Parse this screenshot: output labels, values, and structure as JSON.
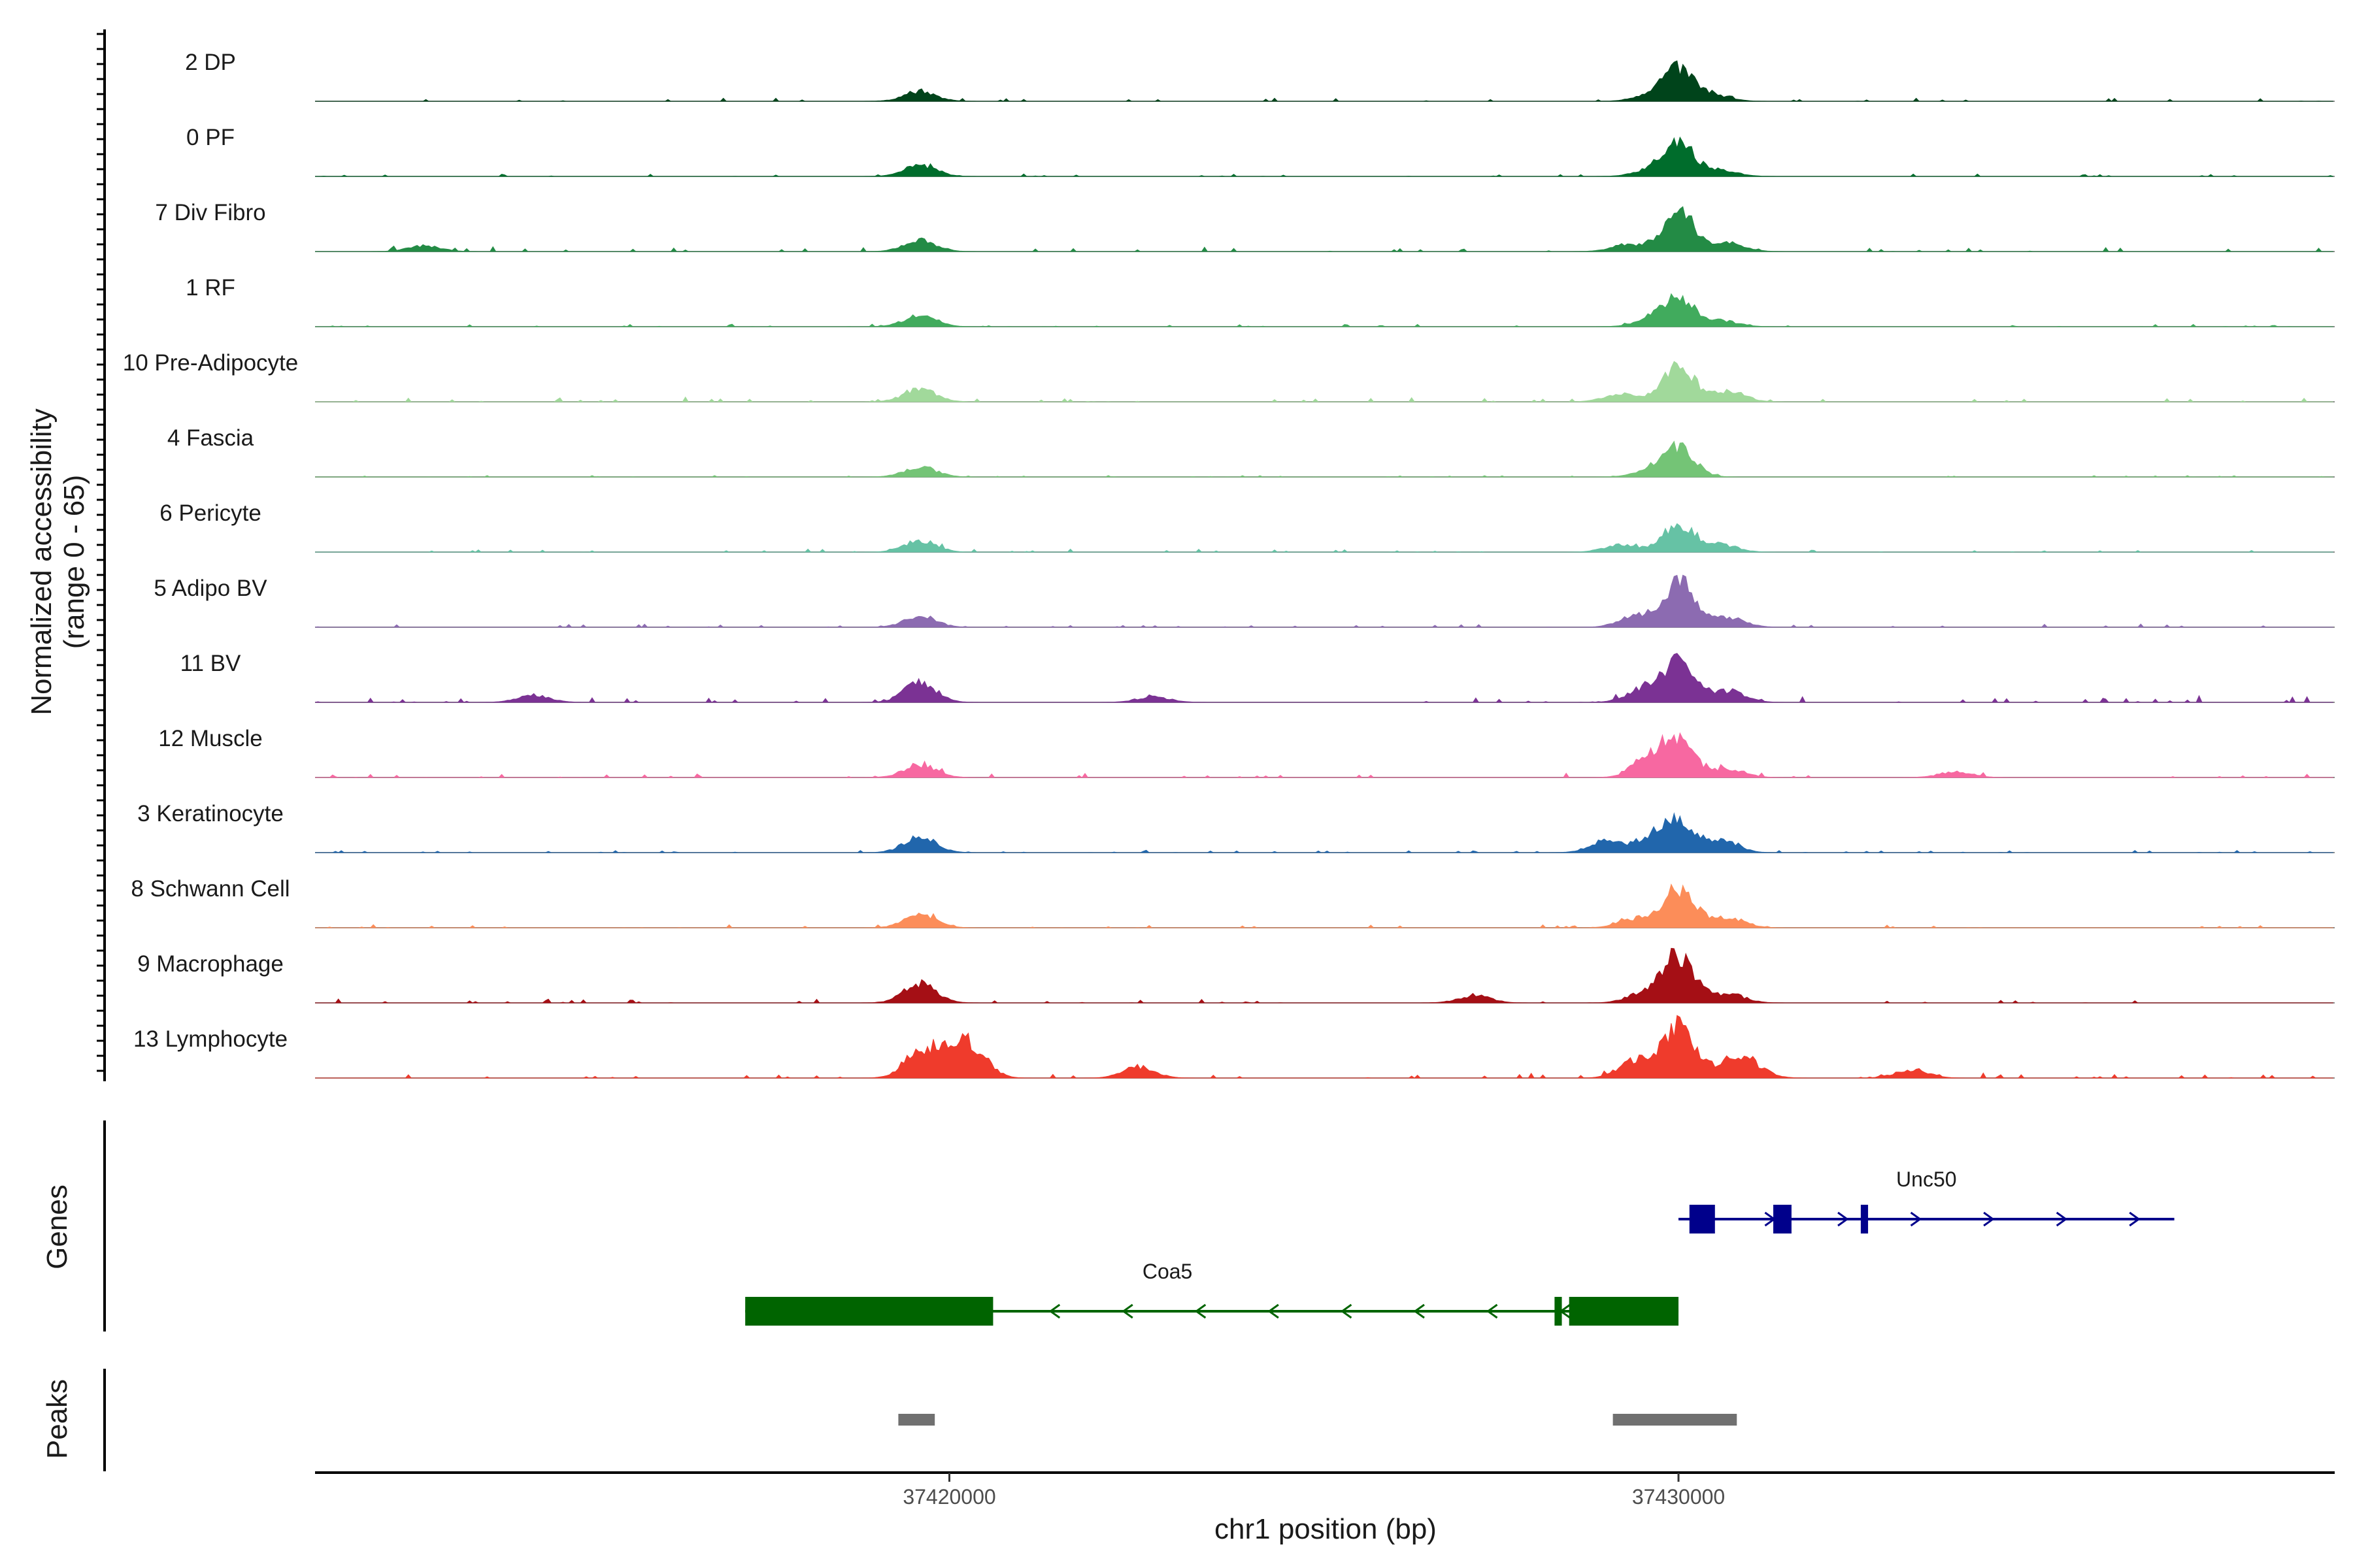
{
  "chart_data": {
    "type": "area",
    "title": "",
    "chromosome": "chr1",
    "xlabel": "chr1 position (bp)",
    "ylabel_line1": "Normalized accessibility",
    "ylabel_line2": "(range 0 - 65)",
    "y_range": [
      0,
      65
    ],
    "xlim": [
      37411300,
      37439000
    ],
    "xticks": [
      37420000,
      37430000
    ],
    "xtick_labels": [
      "37420000",
      "37430000"
    ],
    "series": [
      {
        "name": "2 DP",
        "color": "#00441b",
        "peaks": [
          [
            37419600,
            7
          ],
          [
            37430000,
            22
          ],
          [
            37429600,
            4
          ],
          [
            37430500,
            4
          ]
        ],
        "noise": 2
      },
      {
        "name": "0 PF",
        "color": "#006d2c",
        "peaks": [
          [
            37419600,
            8
          ],
          [
            37430000,
            22
          ],
          [
            37429600,
            4
          ],
          [
            37430600,
            4
          ]
        ],
        "noise": 1.5
      },
      {
        "name": "7 Div Fibro",
        "color": "#238b45",
        "peaks": [
          [
            37419600,
            8
          ],
          [
            37430000,
            28
          ],
          [
            37429300,
            5
          ],
          [
            37430700,
            6
          ],
          [
            37412800,
            4
          ]
        ],
        "noise": 3
      },
      {
        "name": "1 RF",
        "color": "#41ab5d",
        "peaks": [
          [
            37419600,
            8
          ],
          [
            37430000,
            20
          ],
          [
            37429600,
            4
          ],
          [
            37430600,
            4
          ]
        ],
        "noise": 1.5
      },
      {
        "name": "10 Pre-Adipocyte",
        "color": "#a1d99b",
        "peaks": [
          [
            37419600,
            9
          ],
          [
            37430000,
            24
          ],
          [
            37429200,
            6
          ],
          [
            37430700,
            7
          ]
        ],
        "noise": 3
      },
      {
        "name": "4 Fascia",
        "color": "#74c476",
        "peaks": [
          [
            37419600,
            7
          ],
          [
            37430000,
            20
          ],
          [
            37429600,
            4
          ]
        ],
        "noise": 1
      },
      {
        "name": "6 Pericyte",
        "color": "#66c2a5",
        "peaks": [
          [
            37419600,
            8
          ],
          [
            37430000,
            20
          ],
          [
            37429200,
            5
          ],
          [
            37430600,
            5
          ]
        ],
        "noise": 2
      },
      {
        "name": "5 Adipo BV",
        "color": "#8c6bb1",
        "peaks": [
          [
            37419600,
            8
          ],
          [
            37430000,
            32
          ],
          [
            37429400,
            8
          ],
          [
            37430700,
            7
          ]
        ],
        "noise": 2
      },
      {
        "name": "11 BV",
        "color": "#7b3294",
        "peaks": [
          [
            37419600,
            14
          ],
          [
            37430000,
            28
          ],
          [
            37429500,
            9
          ],
          [
            37430700,
            8
          ],
          [
            37414300,
            5
          ],
          [
            37422800,
            4
          ]
        ],
        "noise": 4
      },
      {
        "name": "12 Muscle",
        "color": "#f768a1",
        "peaks": [
          [
            37419600,
            9
          ],
          [
            37430000,
            24
          ],
          [
            37429600,
            14
          ],
          [
            37430700,
            6
          ],
          [
            37433800,
            4
          ]
        ],
        "noise": 3
      },
      {
        "name": "3 Keratinocyte",
        "color": "#2166ac",
        "peaks": [
          [
            37419600,
            11
          ],
          [
            37430000,
            22
          ],
          [
            37429000,
            8
          ],
          [
            37429600,
            9
          ],
          [
            37430600,
            8
          ]
        ],
        "noise": 1.5
      },
      {
        "name": "8 Schwann Cell",
        "color": "#fc8d59",
        "peaks": [
          [
            37419600,
            9
          ],
          [
            37430000,
            28
          ],
          [
            37429400,
            6
          ],
          [
            37430700,
            7
          ]
        ],
        "noise": 2
      },
      {
        "name": "9 Macrophage",
        "color": "#a50f15",
        "peaks": [
          [
            37419600,
            14
          ],
          [
            37430000,
            32
          ],
          [
            37429500,
            6
          ],
          [
            37430700,
            6
          ],
          [
            37427200,
            5
          ]
        ],
        "noise": 3
      },
      {
        "name": "13 Lymphocyte",
        "color": "#ef3b2c",
        "peaks": [
          [
            37419600,
            18
          ],
          [
            37420300,
            20
          ],
          [
            37420000,
            12
          ],
          [
            37430000,
            36
          ],
          [
            37429400,
            12
          ],
          [
            37430700,
            10
          ],
          [
            37431000,
            8
          ],
          [
            37422600,
            8
          ],
          [
            37433200,
            6
          ]
        ],
        "noise": 3
      }
    ],
    "genes": [
      {
        "name": "Unc50",
        "strand": "+",
        "start": 37430000,
        "end": 37436800,
        "color": "#00008b",
        "exons": [
          [
            37430150,
            37430500
          ],
          [
            37431300,
            37431550
          ],
          [
            37432500,
            37432600
          ]
        ]
      },
      {
        "name": "Coa5",
        "strand": "-",
        "start": 37417200,
        "end": 37430000,
        "color": "#006400",
        "exons": [
          [
            37417200,
            37420600
          ],
          [
            37428300,
            37428400
          ],
          [
            37428500,
            37430000
          ]
        ]
      }
    ],
    "peaks_track": [
      [
        37419300,
        37419800
      ],
      [
        37429100,
        37430800
      ]
    ],
    "panel_titles": {
      "genes": "Genes",
      "peaks": "Peaks"
    },
    "grid": false,
    "legend": "none"
  }
}
